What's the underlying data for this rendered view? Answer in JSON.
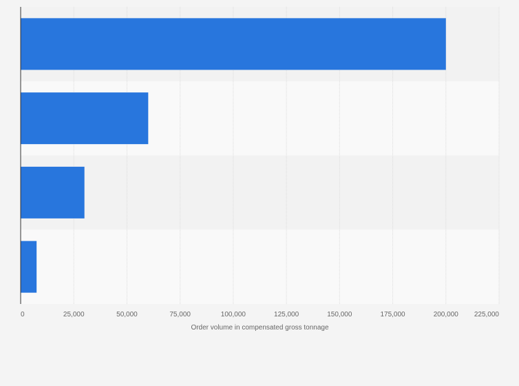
{
  "chart_data": {
    "type": "bar",
    "orientation": "horizontal",
    "title": "",
    "xlabel": "Order volume in compensated gross tonnage",
    "ylabel": "",
    "categories": [
      "",
      "",
      "",
      ""
    ],
    "values": [
      200000,
      60000,
      30000,
      7500
    ],
    "xlim": [
      0,
      225000
    ],
    "ticks": [
      0,
      25000,
      50000,
      75000,
      100000,
      125000,
      150000,
      175000,
      200000,
      225000
    ],
    "tick_labels": [
      "0",
      "25,000",
      "50,000",
      "75,000",
      "100,000",
      "125,000",
      "150,000",
      "175,000",
      "200,000",
      "225,000"
    ],
    "grid": true,
    "legend": "none",
    "colors": {
      "bar": "#2876dd",
      "band_dark": "#f2f2f2",
      "band_light": "#f9f9f9",
      "grid": "#dcdcdc",
      "axis": "#333333"
    }
  }
}
